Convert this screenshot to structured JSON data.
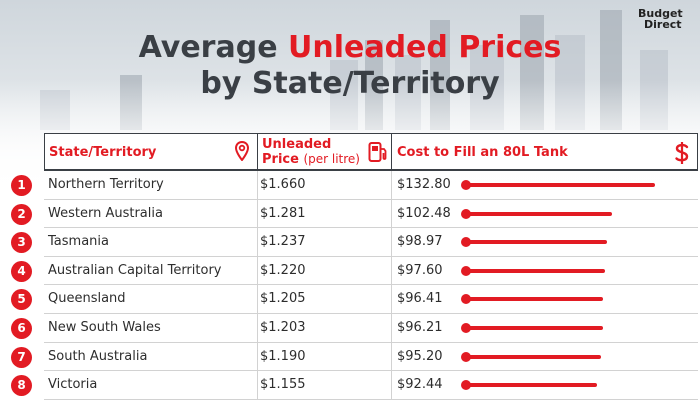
{
  "brand": {
    "line1": "Budget",
    "line2": "Direct"
  },
  "title": {
    "prefix": "Average ",
    "highlight": "Unleaded Prices",
    "line2": "by State/Territory"
  },
  "colors": {
    "accent": "#e21b23",
    "text": "#3a3f45"
  },
  "icons": {
    "state": "map-pin-icon",
    "price": "fuel-pump-icon",
    "cost": "dollar-icon"
  },
  "table": {
    "headers": {
      "state": "State/Territory",
      "price": "Unleaded",
      "price_line2": "Price",
      "price_unit": "(per litre)",
      "cost": "Cost to Fill an 80L Tank"
    }
  },
  "chart_data": {
    "type": "table",
    "title": "Average Unleaded Prices by State/Territory",
    "columns": [
      "State/Territory",
      "Unleaded Price (per litre)",
      "Cost to Fill an 80L Tank"
    ],
    "rows": [
      {
        "rank": "1",
        "state": "Northern Territory",
        "price": "$1.660",
        "cost": "$132.80",
        "cost_value": 132.8
      },
      {
        "rank": "2",
        "state": "Western Australia",
        "price": "$1.281",
        "cost": "$102.48",
        "cost_value": 102.48
      },
      {
        "rank": "3",
        "state": "Tasmania",
        "price": "$1.237",
        "cost": "$98.97",
        "cost_value": 98.97
      },
      {
        "rank": "4",
        "state": "Australian Capital Territory",
        "price": "$1.220",
        "cost": "$97.60",
        "cost_value": 97.6
      },
      {
        "rank": "5",
        "state": "Queensland",
        "price": "$1.205",
        "cost": "$96.41",
        "cost_value": 96.41
      },
      {
        "rank": "6",
        "state": "New South Wales",
        "price": "$1.203",
        "cost": "$96.21",
        "cost_value": 96.21
      },
      {
        "rank": "7",
        "state": "South Australia",
        "price": "$1.190",
        "cost": "$95.20",
        "cost_value": 95.2
      },
      {
        "rank": "8",
        "state": "Victoria",
        "price": "$1.155",
        "cost": "$92.44",
        "cost_value": 92.44
      }
    ]
  }
}
